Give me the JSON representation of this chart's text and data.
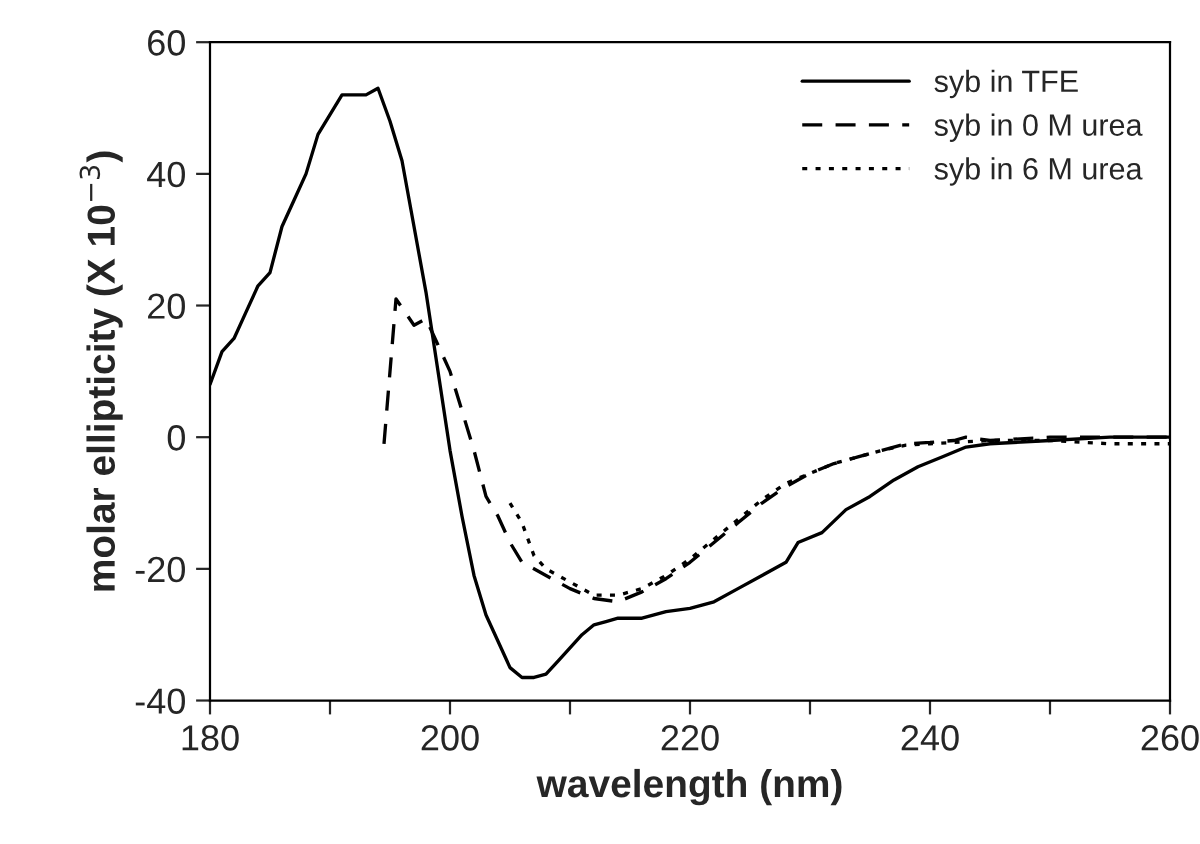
{
  "chart_data": {
    "type": "line",
    "xlabel": "wavelength (nm)",
    "ylabel": "molar ellipticity (X 10$^{−3}$)",
    "xlim": [
      180,
      260
    ],
    "ylim": [
      -40,
      60
    ],
    "xticks": [
      180,
      {
        "value": 190,
        "label": null
      },
      200,
      {
        "value": 210,
        "label": null
      },
      220,
      {
        "value": 230,
        "label": null
      },
      240,
      {
        "value": 250,
        "label": null
      },
      260
    ],
    "yticks": [
      -40,
      -20,
      0,
      20,
      40,
      60
    ],
    "grid": false,
    "legend": "top right",
    "marker": "none",
    "series": [
      {
        "name": "syb in TFE",
        "color": "#000000",
        "line_style": "solid",
        "x": [
          180,
          181,
          182,
          183,
          184,
          185,
          186,
          187,
          188,
          189,
          190,
          191,
          192,
          193,
          194,
          195,
          196,
          197,
          198,
          199,
          200,
          201,
          202,
          203,
          204,
          205,
          206,
          207,
          208,
          209,
          210,
          211,
          212,
          213,
          214,
          216,
          218,
          220,
          222,
          224,
          226,
          228,
          229,
          231,
          233,
          235,
          237,
          239,
          241,
          243,
          245,
          250,
          255,
          260
        ],
        "values": [
          8,
          13,
          15,
          19,
          23,
          25,
          32,
          36,
          40,
          46,
          49,
          52,
          52,
          52,
          53,
          48,
          42,
          32,
          22,
          10,
          -2,
          -12,
          -21,
          -27,
          -31,
          -35,
          -36.5,
          -36.5,
          -36,
          -34,
          -32,
          -30,
          -28.5,
          -28,
          -27.5,
          -27.5,
          -26.5,
          -26,
          -25,
          -23,
          -21,
          -19,
          -16,
          -14.5,
          -11,
          -9,
          -6.5,
          -4.5,
          -3,
          -1.5,
          -1,
          -0.5,
          0,
          0
        ]
      },
      {
        "name": "syb in 0 M urea",
        "color": "#000000",
        "line_style": "dashed",
        "x": [
          194.5,
          195.5,
          197,
          198,
          199,
          200,
          201,
          202,
          203,
          204,
          205,
          206,
          208,
          210,
          212,
          214,
          216,
          218,
          220,
          222,
          224,
          226,
          228,
          230,
          232,
          234,
          236,
          238,
          240,
          242,
          243,
          245,
          250,
          255,
          260
        ],
        "values": [
          -1,
          21,
          17,
          18,
          14,
          10,
          4,
          -2,
          -9,
          -12,
          -16,
          -19,
          -21,
          -23,
          -24.5,
          -25,
          -23.5,
          -21.5,
          -19,
          -16,
          -13,
          -10,
          -7.5,
          -5.5,
          -4,
          -3,
          -2,
          -1,
          -0.8,
          -0.5,
          0,
          -0.5,
          0,
          0,
          0
        ]
      },
      {
        "name": "syb in 6 M urea",
        "color": "#000000",
        "line_style": "dotted",
        "x": [
          205,
          206,
          207,
          208,
          210,
          212,
          214,
          216,
          218,
          220,
          222,
          224,
          226,
          228,
          230,
          232,
          234,
          236,
          238,
          240,
          242,
          245,
          250,
          255,
          260
        ],
        "values": [
          -10,
          -13,
          -18,
          -20,
          -22,
          -24,
          -24,
          -23,
          -21,
          -18.5,
          -15.5,
          -12.5,
          -9.5,
          -7,
          -5.5,
          -4,
          -3,
          -2,
          -1.2,
          -1,
          -0.8,
          -0.5,
          -0.5,
          -1,
          -1
        ]
      }
    ]
  }
}
